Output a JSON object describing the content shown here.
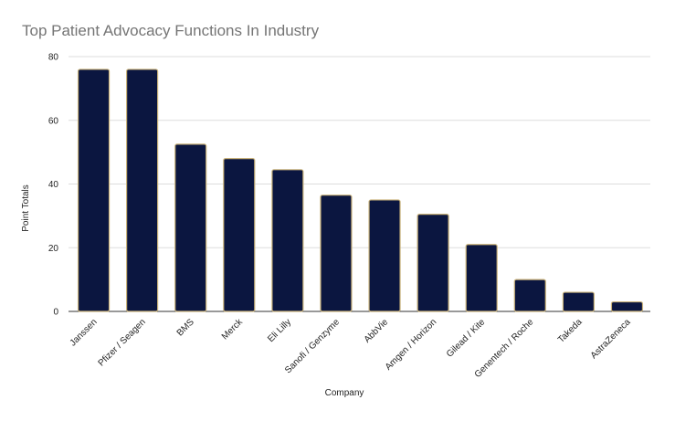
{
  "chart_data": {
    "type": "bar",
    "title": "Top Patient Advocacy Functions In Industry",
    "xlabel": "Company",
    "ylabel": "Point Totals",
    "categories": [
      "Janssen",
      "Pfizer / Seagen",
      "BMS",
      "Merck",
      "Eli Lilly",
      "Sanofi / Genzyme",
      "AbbVie",
      "Amgen / Horizon",
      "Gilead / Kite",
      "Genentech / Roche",
      "Takeda",
      "AstraZeneca"
    ],
    "series": [
      {
        "values": [
          76,
          76,
          52.5,
          48,
          44.5,
          36.5,
          35,
          30.5,
          21,
          10,
          6,
          3
        ]
      }
    ],
    "ylim": [
      0,
      80
    ],
    "yticks": [
      0,
      20,
      40,
      60,
      80
    ],
    "grid": true,
    "legend": "none",
    "colors": {
      "bar_fill": "#0b1640",
      "bar_stroke": "#c9b27a",
      "title": "#757575",
      "grid": "#dddddd"
    }
  }
}
